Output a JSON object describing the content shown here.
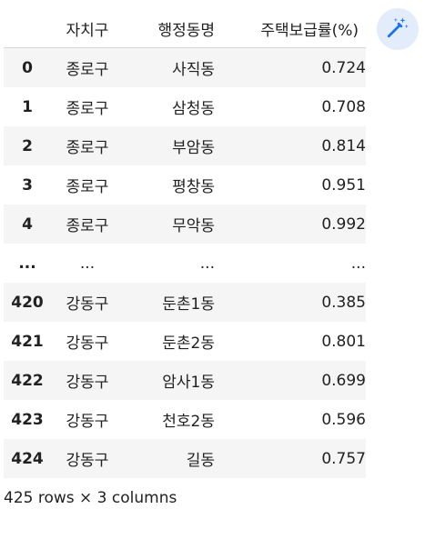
{
  "table": {
    "columns": [
      "자치구",
      "행정동명",
      "주택보급률(%)"
    ],
    "rows": [
      {
        "index": "0",
        "gu": "종로구",
        "dong": "사직동",
        "rate": "0.724"
      },
      {
        "index": "1",
        "gu": "종로구",
        "dong": "삼청동",
        "rate": "0.708"
      },
      {
        "index": "2",
        "gu": "종로구",
        "dong": "부암동",
        "rate": "0.814"
      },
      {
        "index": "3",
        "gu": "종로구",
        "dong": "평창동",
        "rate": "0.951"
      },
      {
        "index": "4",
        "gu": "종로구",
        "dong": "무악동",
        "rate": "0.992"
      },
      {
        "index": "...",
        "gu": "...",
        "dong": "...",
        "rate": "..."
      },
      {
        "index": "420",
        "gu": "강동구",
        "dong": "둔촌1동",
        "rate": "0.385"
      },
      {
        "index": "421",
        "gu": "강동구",
        "dong": "둔촌2동",
        "rate": "0.801"
      },
      {
        "index": "422",
        "gu": "강동구",
        "dong": "암사1동",
        "rate": "0.699"
      },
      {
        "index": "423",
        "gu": "강동구",
        "dong": "천호2동",
        "rate": "0.596"
      },
      {
        "index": "424",
        "gu": "강동구",
        "dong": "길동",
        "rate": "0.757"
      }
    ],
    "summary": "425 rows × 3 columns"
  },
  "toolbar": {
    "wand_icon": "magic-wand-icon",
    "accent_color": "#1a73e8",
    "button_bg": "#e3ecfb"
  }
}
